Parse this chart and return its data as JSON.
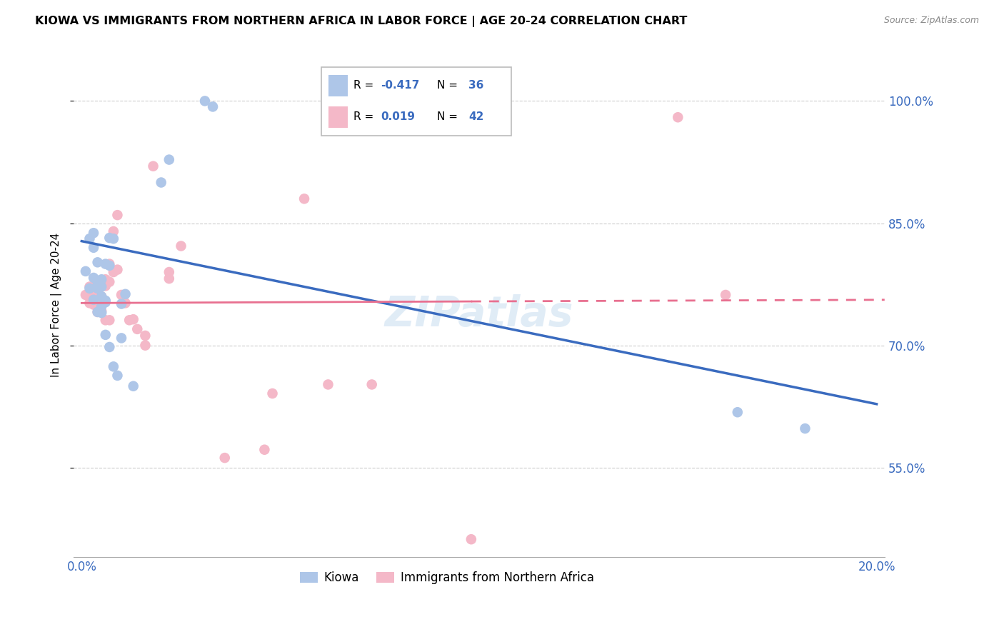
{
  "title": "KIOWA VS IMMIGRANTS FROM NORTHERN AFRICA IN LABOR FORCE | AGE 20-24 CORRELATION CHART",
  "source": "Source: ZipAtlas.com",
  "ylabel": "In Labor Force | Age 20-24",
  "xlim": [
    -0.002,
    0.202
  ],
  "ylim": [
    0.44,
    1.06
  ],
  "yticks": [
    0.55,
    0.7,
    0.85,
    1.0
  ],
  "ytick_labels": [
    "55.0%",
    "70.0%",
    "85.0%",
    "100.0%"
  ],
  "xticks": [
    0.0,
    0.05,
    0.1,
    0.15,
    0.2
  ],
  "xtick_labels": [
    "0.0%",
    "",
    "",
    "",
    "20.0%"
  ],
  "kiowa_color": "#aec6e8",
  "immigrant_color": "#f4b8c8",
  "line1_color": "#3a6bbf",
  "line2_color": "#e87090",
  "watermark": "ZIPatlas",
  "blue_line_x0": 0.0,
  "blue_line_y0": 0.828,
  "blue_line_x1": 0.2,
  "blue_line_y1": 0.628,
  "pink_line_x0": 0.0,
  "pink_line_y0": 0.752,
  "pink_line_x1_solid": 0.098,
  "pink_line_y1_solid": 0.754,
  "pink_line_x1_dash": 0.202,
  "pink_line_y1_dash": 0.756,
  "kiowa_x": [
    0.001,
    0.002,
    0.002,
    0.003,
    0.003,
    0.003,
    0.004,
    0.004,
    0.004,
    0.005,
    0.005,
    0.005,
    0.005,
    0.006,
    0.006,
    0.006,
    0.007,
    0.007,
    0.008,
    0.008,
    0.009,
    0.01,
    0.01,
    0.011,
    0.013,
    0.02,
    0.022,
    0.031,
    0.033,
    0.165,
    0.182,
    0.003,
    0.004,
    0.005,
    0.006,
    0.007
  ],
  "kiowa_y": [
    0.791,
    0.831,
    0.77,
    0.838,
    0.82,
    0.783,
    0.802,
    0.774,
    0.741,
    0.781,
    0.772,
    0.76,
    0.748,
    0.8,
    0.753,
    0.713,
    0.832,
    0.698,
    0.831,
    0.674,
    0.663,
    0.751,
    0.709,
    0.763,
    0.65,
    0.9,
    0.928,
    1.0,
    0.993,
    0.618,
    0.598,
    0.756,
    0.77,
    0.74,
    0.755,
    0.798
  ],
  "immigrant_x": [
    0.001,
    0.002,
    0.002,
    0.003,
    0.003,
    0.003,
    0.004,
    0.004,
    0.004,
    0.005,
    0.005,
    0.005,
    0.006,
    0.006,
    0.006,
    0.007,
    0.007,
    0.007,
    0.008,
    0.008,
    0.009,
    0.009,
    0.01,
    0.011,
    0.012,
    0.013,
    0.014,
    0.016,
    0.016,
    0.018,
    0.022,
    0.022,
    0.025,
    0.036,
    0.046,
    0.048,
    0.056,
    0.062,
    0.073,
    0.098,
    0.15,
    0.162
  ],
  "immigrant_y": [
    0.762,
    0.772,
    0.752,
    0.772,
    0.76,
    0.75,
    0.77,
    0.752,
    0.741,
    0.76,
    0.759,
    0.742,
    0.781,
    0.773,
    0.731,
    0.8,
    0.778,
    0.731,
    0.84,
    0.79,
    0.86,
    0.793,
    0.762,
    0.752,
    0.731,
    0.732,
    0.72,
    0.712,
    0.7,
    0.92,
    0.79,
    0.782,
    0.822,
    0.562,
    0.572,
    0.641,
    0.88,
    0.652,
    0.652,
    0.462,
    0.98,
    0.762
  ]
}
